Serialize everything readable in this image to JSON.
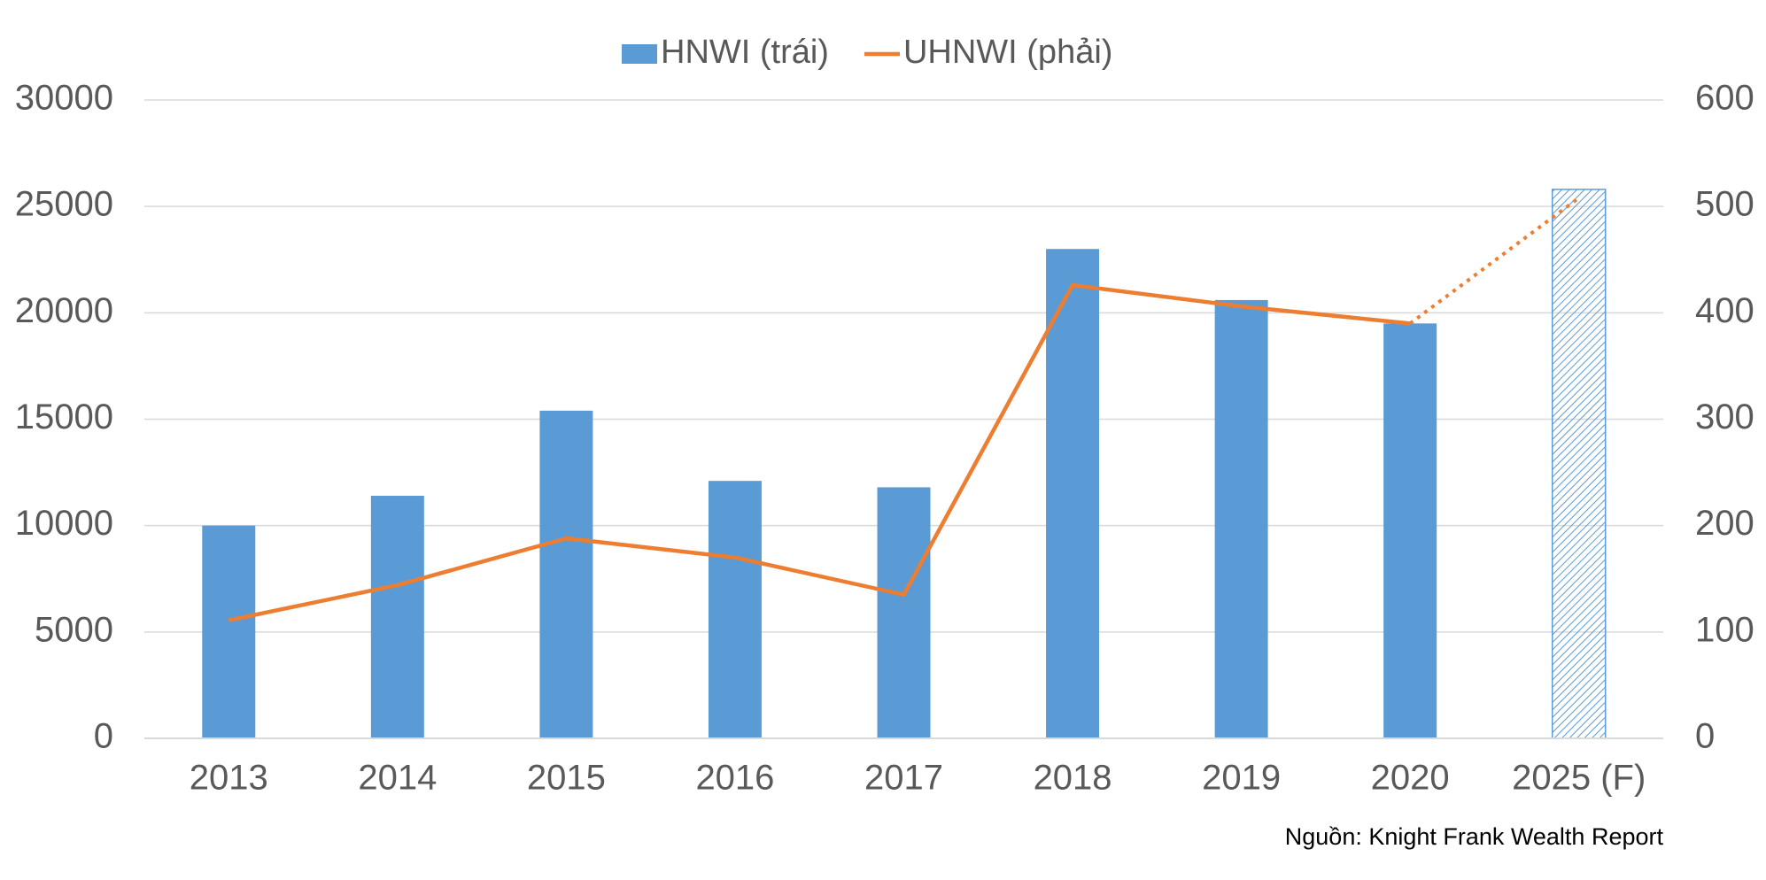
{
  "chart_data": {
    "type": "bar-line",
    "source": "Nguồn: Knight Frank Wealth Report",
    "categories": [
      "2013",
      "2014",
      "2015",
      "2016",
      "2017",
      "2018",
      "2019",
      "2020",
      "2025 (F)"
    ],
    "series": [
      {
        "name": "HNWI (trái)",
        "color": "#5b9bd5",
        "type": "bar",
        "values": [
          10000,
          11400,
          15400,
          12100,
          11800,
          23000,
          20600,
          19500,
          25800
        ]
      },
      {
        "name": "UHNWI (phải)",
        "color": "#ed7d31",
        "type": "line",
        "axis": "y2",
        "values": [
          111,
          144,
          188,
          170,
          135,
          426,
          406,
          390,
          508
        ]
      }
    ],
    "forecast_index": 8,
    "ylim": [
      0,
      30000
    ],
    "yticks": [
      0,
      5000,
      10000,
      15000,
      20000,
      25000,
      30000
    ],
    "y2lim": [
      0,
      600
    ],
    "y2ticks": [
      0,
      100,
      200,
      300,
      400,
      500,
      600
    ],
    "grid": true,
    "legend": "top"
  }
}
